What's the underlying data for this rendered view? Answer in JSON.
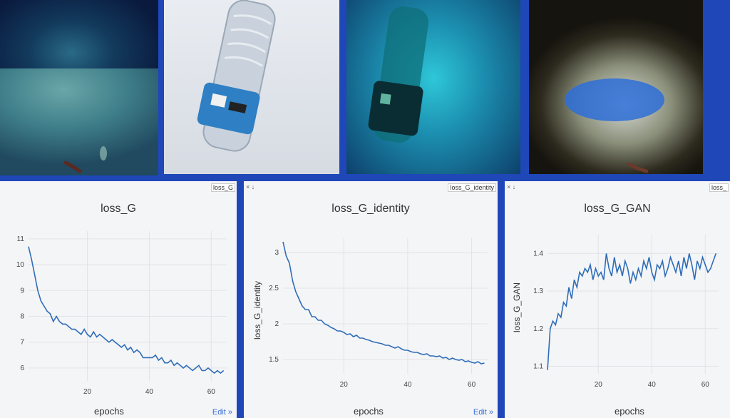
{
  "images": [
    {
      "id": "tile-1",
      "icon": "seafloor-image"
    },
    {
      "id": "tile-2",
      "icon": "plastic-bottle-image"
    },
    {
      "id": "tile-3",
      "icon": "translated-bottle-image"
    },
    {
      "id": "tile-4",
      "icon": "translated-seafloor-image"
    }
  ],
  "panels": [
    {
      "tab_label": "loss_G",
      "title": "loss_G",
      "xlabel": "epochs",
      "ylabel": "",
      "edit": "Edit »",
      "close": "× ↓"
    },
    {
      "tab_label": "loss_G_identity",
      "title": "loss_G_identity",
      "xlabel": "epochs",
      "ylabel": "loss_G_identity",
      "edit": "Edit »",
      "close": "× ↓"
    },
    {
      "tab_label": "loss_",
      "title": "loss_G_GAN",
      "xlabel": "epochs",
      "ylabel": "loss_G_GAN",
      "edit": "",
      "close": "× ↓"
    }
  ],
  "chart_data": [
    {
      "type": "line",
      "title": "loss_G",
      "xlabel": "epochs",
      "ylabel": "",
      "xlim": [
        1,
        65
      ],
      "ylim": [
        5.5,
        11.3
      ],
      "xticks": [
        20,
        40,
        60
      ],
      "yticks": [
        6,
        7,
        8,
        9,
        10,
        11
      ],
      "x": [
        1,
        2,
        3,
        4,
        5,
        6,
        7,
        8,
        9,
        10,
        11,
        12,
        13,
        14,
        15,
        16,
        17,
        18,
        19,
        20,
        21,
        22,
        23,
        24,
        25,
        26,
        27,
        28,
        29,
        30,
        31,
        32,
        33,
        34,
        35,
        36,
        37,
        38,
        39,
        40,
        41,
        42,
        43,
        44,
        45,
        46,
        47,
        48,
        49,
        50,
        51,
        52,
        53,
        54,
        55,
        56,
        57,
        58,
        59,
        60,
        61,
        62,
        63,
        64
      ],
      "values": [
        10.7,
        10.2,
        9.6,
        9.0,
        8.6,
        8.4,
        8.2,
        8.1,
        7.8,
        8.0,
        7.8,
        7.7,
        7.7,
        7.6,
        7.5,
        7.5,
        7.4,
        7.3,
        7.5,
        7.3,
        7.2,
        7.4,
        7.2,
        7.3,
        7.2,
        7.1,
        7.0,
        7.1,
        7.0,
        6.9,
        6.8,
        6.9,
        6.7,
        6.8,
        6.6,
        6.7,
        6.6,
        6.4,
        6.4,
        6.4,
        6.4,
        6.5,
        6.3,
        6.4,
        6.2,
        6.2,
        6.3,
        6.1,
        6.2,
        6.1,
        6.0,
        6.1,
        6.0,
        5.9,
        6.0,
        6.1,
        5.9,
        5.9,
        6.0,
        5.9,
        5.8,
        5.9,
        5.8,
        5.9
      ]
    },
    {
      "type": "line",
      "title": "loss_G_identity",
      "xlabel": "epochs",
      "ylabel": "loss_G_identity",
      "xlim": [
        1,
        65
      ],
      "ylim": [
        1.3,
        3.2
      ],
      "xticks": [
        20,
        40,
        60
      ],
      "yticks": [
        1.5,
        2,
        2.5,
        3
      ],
      "x": [
        1,
        2,
        3,
        4,
        5,
        6,
        7,
        8,
        9,
        10,
        11,
        12,
        13,
        14,
        15,
        16,
        17,
        18,
        19,
        20,
        21,
        22,
        23,
        24,
        25,
        26,
        27,
        28,
        29,
        30,
        31,
        32,
        33,
        34,
        35,
        36,
        37,
        38,
        39,
        40,
        41,
        42,
        43,
        44,
        45,
        46,
        47,
        48,
        49,
        50,
        51,
        52,
        53,
        54,
        55,
        56,
        57,
        58,
        59,
        60,
        61,
        62,
        63,
        64
      ],
      "values": [
        3.15,
        2.95,
        2.85,
        2.6,
        2.45,
        2.35,
        2.25,
        2.2,
        2.2,
        2.1,
        2.1,
        2.05,
        2.05,
        2.0,
        1.98,
        1.95,
        1.93,
        1.9,
        1.9,
        1.88,
        1.85,
        1.86,
        1.82,
        1.84,
        1.8,
        1.8,
        1.78,
        1.77,
        1.75,
        1.74,
        1.73,
        1.72,
        1.7,
        1.7,
        1.68,
        1.66,
        1.68,
        1.65,
        1.63,
        1.63,
        1.61,
        1.6,
        1.6,
        1.58,
        1.57,
        1.58,
        1.55,
        1.55,
        1.54,
        1.55,
        1.52,
        1.53,
        1.5,
        1.52,
        1.5,
        1.49,
        1.5,
        1.47,
        1.48,
        1.46,
        1.45,
        1.47,
        1.44,
        1.45
      ]
    },
    {
      "type": "line",
      "title": "loss_G_GAN",
      "xlabel": "epochs",
      "ylabel": "loss_G_GAN",
      "xlim": [
        1,
        65
      ],
      "ylim": [
        1.08,
        1.45
      ],
      "xticks": [
        20,
        40,
        60
      ],
      "yticks": [
        1.1,
        1.2,
        1.3,
        1.4
      ],
      "x": [
        1,
        2,
        3,
        4,
        5,
        6,
        7,
        8,
        9,
        10,
        11,
        12,
        13,
        14,
        15,
        16,
        17,
        18,
        19,
        20,
        21,
        22,
        23,
        24,
        25,
        26,
        27,
        28,
        29,
        30,
        31,
        32,
        33,
        34,
        35,
        36,
        37,
        38,
        39,
        40,
        41,
        42,
        43,
        44,
        45,
        46,
        47,
        48,
        49,
        50,
        51,
        52,
        53,
        54,
        55,
        56,
        57,
        58,
        59,
        60,
        61,
        62,
        63,
        64
      ],
      "values": [
        1.09,
        1.2,
        1.22,
        1.21,
        1.24,
        1.23,
        1.27,
        1.26,
        1.31,
        1.28,
        1.33,
        1.31,
        1.35,
        1.34,
        1.36,
        1.35,
        1.37,
        1.33,
        1.36,
        1.34,
        1.35,
        1.33,
        1.4,
        1.36,
        1.34,
        1.39,
        1.35,
        1.37,
        1.34,
        1.38,
        1.36,
        1.32,
        1.35,
        1.33,
        1.36,
        1.34,
        1.38,
        1.36,
        1.39,
        1.35,
        1.33,
        1.37,
        1.36,
        1.38,
        1.34,
        1.36,
        1.39,
        1.37,
        1.35,
        1.38,
        1.34,
        1.39,
        1.36,
        1.4,
        1.37,
        1.33,
        1.38,
        1.36,
        1.39,
        1.37,
        1.35,
        1.36,
        1.38,
        1.4
      ]
    }
  ]
}
